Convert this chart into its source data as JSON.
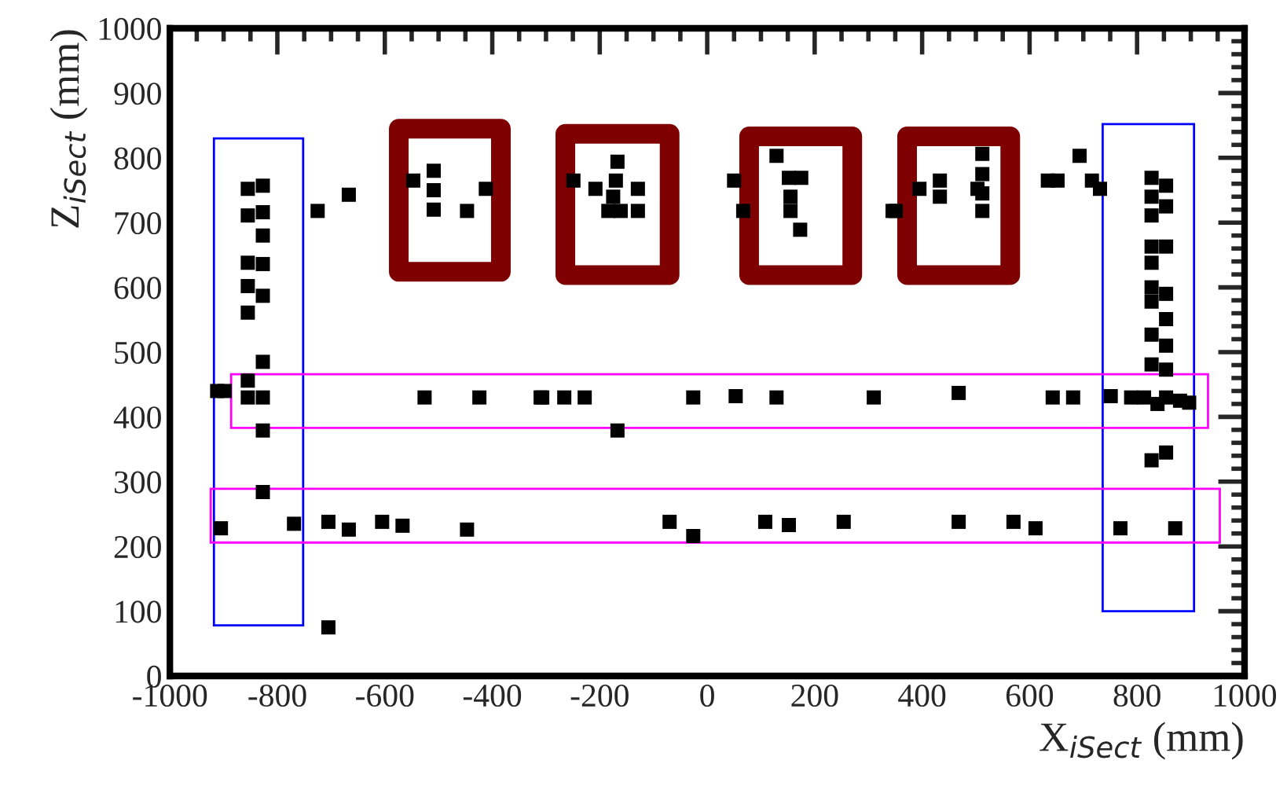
{
  "chart_data": {
    "type": "scatter",
    "xlabel": "X$_{iSect}$ (mm)",
    "ylabel": "Z$_{iSect}$ (mm)",
    "marker": "square",
    "xlim": [
      -1000,
      1000
    ],
    "xticks": [
      -1000,
      -800,
      -600,
      -400,
      -200,
      0,
      200,
      400,
      600,
      800,
      1000
    ],
    "ylim": [
      0,
      1000
    ],
    "yticks": [
      0,
      100,
      200,
      300,
      400,
      500,
      600,
      700,
      800,
      900,
      1000
    ],
    "series": [
      {
        "color": "#000000",
        "x": [
          -912,
          -898,
          -855,
          -827,
          -827,
          -855,
          -827,
          -855,
          -827,
          -855,
          -827,
          -855,
          -827,
          -855,
          -827,
          -855,
          -827,
          -827,
          -905,
          -769,
          -705,
          -667,
          -605,
          -567,
          -447,
          -705,
          -725,
          -667,
          -547,
          -509,
          -509,
          -509,
          -447,
          -412,
          -526,
          -424,
          -310,
          -249,
          -208,
          -167,
          -170,
          -175,
          -184,
          -161,
          -129,
          -129,
          50,
          67,
          129,
          152,
          175,
          155,
          155,
          173,
          345,
          -307,
          -266,
          -228,
          -167,
          -26,
          53,
          129,
          310,
          -70,
          -26,
          108,
          152,
          254,
          351,
          395,
          433,
          433,
          512,
          512,
          512,
          512,
          503,
          634,
          652,
          693,
          716,
          731,
          827,
          854,
          827,
          854,
          827,
          854,
          827,
          827,
          827,
          854,
          827,
          854,
          827,
          854,
          827,
          854,
          468,
          643,
          681,
          751,
          789,
          813,
          838,
          854,
          880,
          897,
          827,
          854,
          468,
          570,
          611,
          769,
          871
        ],
        "values": [
          440,
          440,
          430,
          430,
          757,
          752,
          716,
          711,
          680,
          638,
          636,
          602,
          587,
          561,
          485,
          456,
          379,
          284,
          228,
          235,
          238,
          226,
          238,
          232,
          226,
          75,
          718,
          743,
          765,
          780,
          750,
          720,
          718,
          752,
          430,
          430,
          430,
          765,
          752,
          794,
          765,
          740,
          718,
          718,
          752,
          718,
          765,
          718,
          803,
          769,
          769,
          740,
          718,
          689,
          718,
          430,
          430,
          430,
          379,
          430,
          432,
          430,
          430,
          238,
          216,
          238,
          233,
          238,
          718,
          752,
          765,
          740,
          806,
          775,
          745,
          718,
          752,
          765,
          765,
          803,
          765,
          752,
          769,
          757,
          740,
          725,
          711,
          663,
          663,
          638,
          600,
          590,
          578,
          551,
          527,
          510,
          481,
          473,
          437,
          430,
          430,
          432,
          430,
          430,
          420,
          430,
          425,
          422,
          333,
          345,
          238,
          238,
          228,
          228,
          228
        ]
      }
    ]
  }
}
